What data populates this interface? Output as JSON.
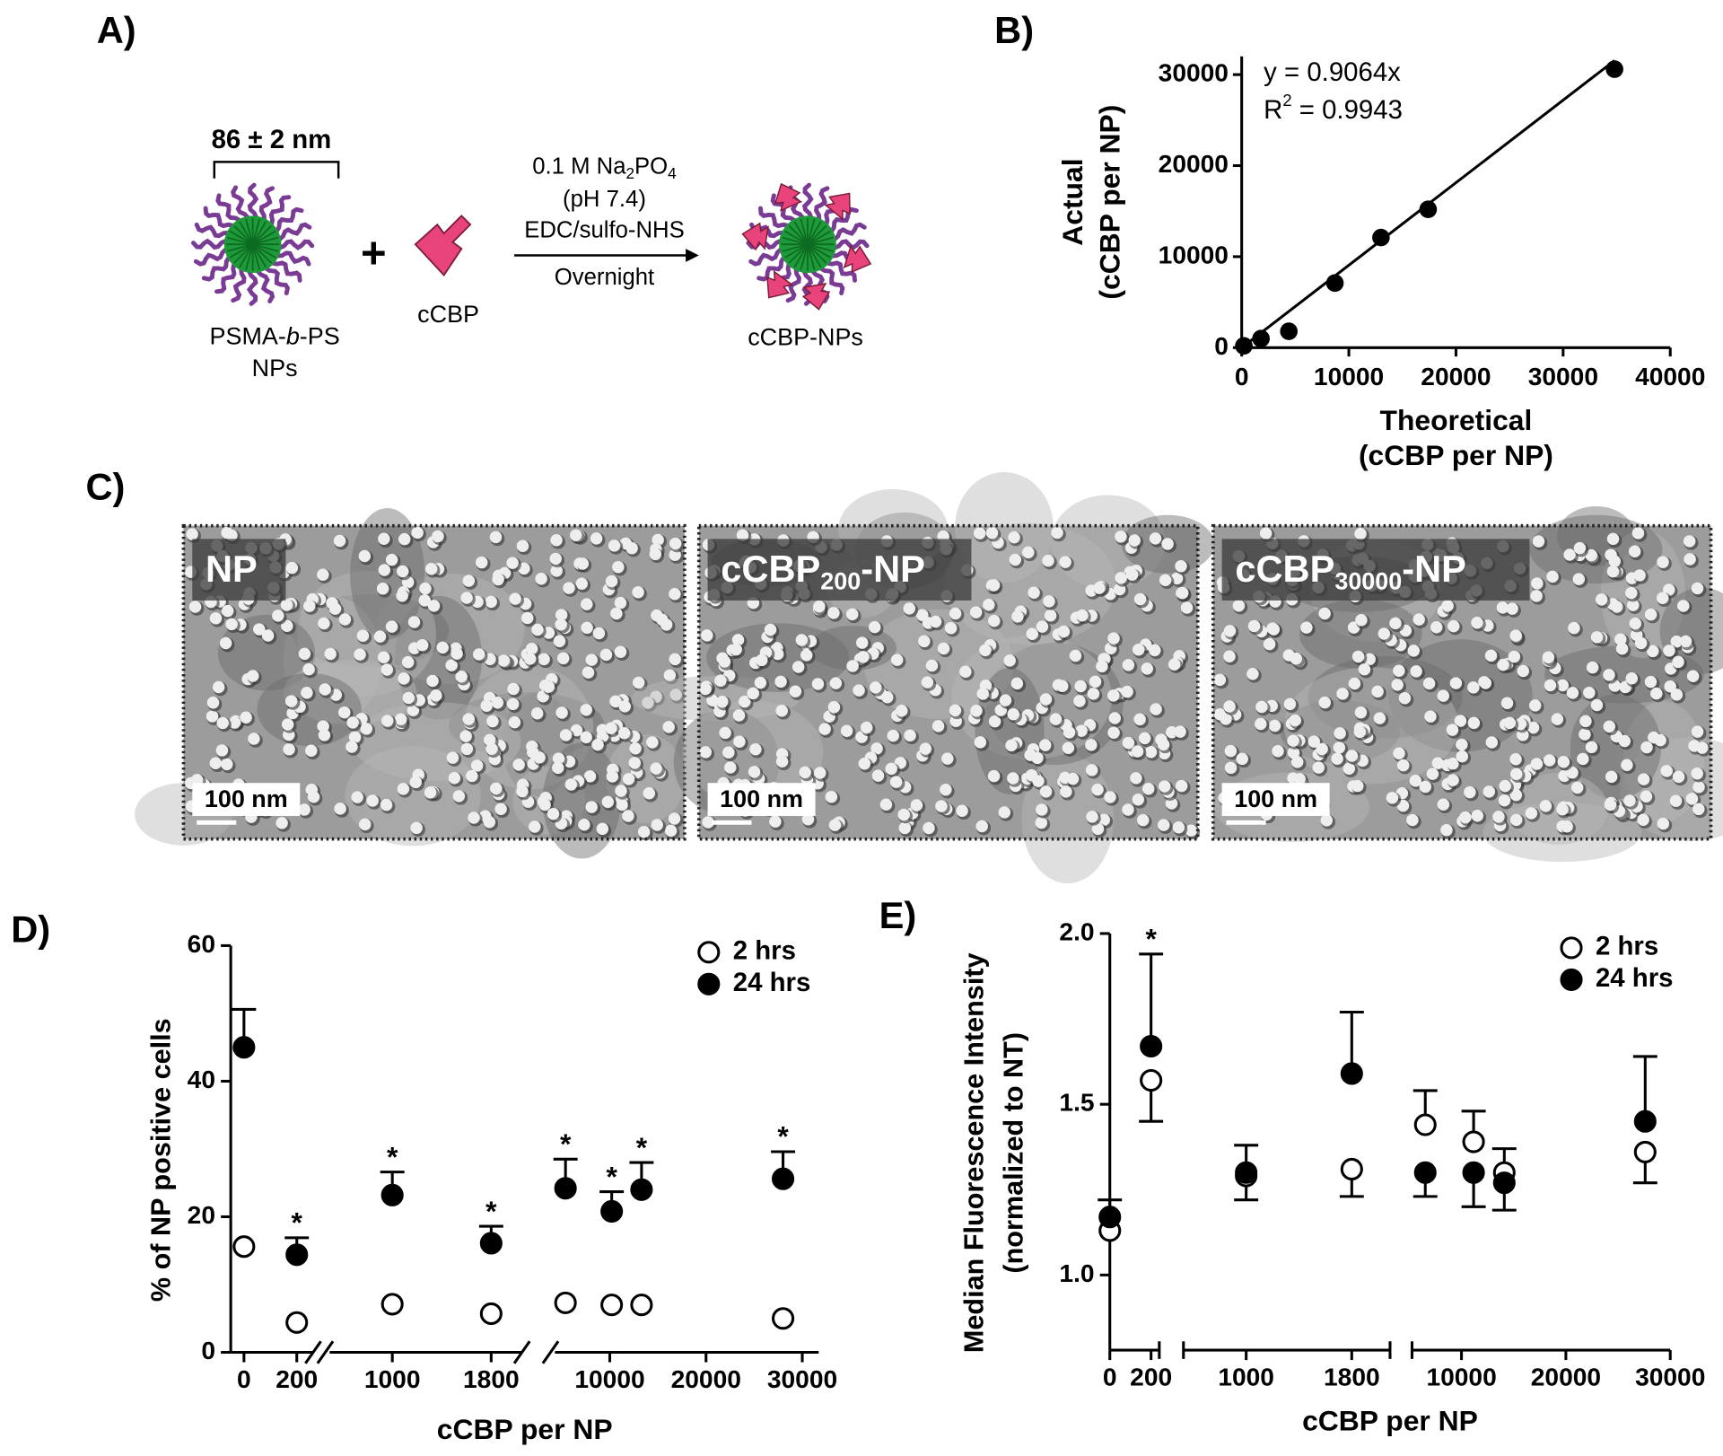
{
  "panel_labels": [
    "A)",
    "B)",
    "C)",
    "D)",
    "E)"
  ],
  "scheme": {
    "size": "86 ± 2 nm",
    "np_name": [
      "PSMA-",
      "b",
      "-PS"
    ],
    "np_name_2": "NPs",
    "plus": "+",
    "ligand": "cCBP",
    "conditions": [
      [
        "0.1 M Na",
        "2",
        "PO",
        "4"
      ],
      "(pH 7.4)",
      "EDC/sulfo-NHS"
    ],
    "time": "Overnight",
    "product": "cCBP-NPs"
  },
  "micrographs": [
    {
      "label": [
        "NP"
      ],
      "scale_bar": "100 nm"
    },
    {
      "label": [
        "cCBP",
        "200",
        "-NP"
      ],
      "scale_bar": "100 nm"
    },
    {
      "label": [
        "cCBP",
        "30000",
        "-NP"
      ],
      "scale_bar": "100 nm"
    }
  ],
  "chart_data": [
    {
      "type": "scatter",
      "x_label": [
        "Theoretical",
        "(cCBP per NP)"
      ],
      "y_label": [
        "Actual",
        "(cCBP per NP)"
      ],
      "x": [
        200,
        1800,
        4400,
        8700,
        13000,
        17400,
        34800
      ],
      "values": [
        200,
        1000,
        1800,
        7100,
        12100,
        15200,
        30600
      ],
      "fit": {
        "slope": 0.9064,
        "equation": "y = 0.9064x",
        "r2": [
          "R",
          "2",
          " = 0.9943"
        ]
      },
      "xlim": [
        0,
        40000
      ],
      "ylim": [
        0,
        32000
      ],
      "xticks": [
        0,
        10000,
        20000,
        30000,
        40000
      ],
      "yticks": [
        0,
        10000,
        20000,
        30000
      ],
      "color": "#000000"
    },
    {
      "type": "broken-scatter",
      "x_label": "cCBP per NP",
      "y_label": [
        "% of NP positive cells"
      ],
      "x": [
        0,
        200,
        1000,
        1800,
        5400,
        10200,
        13300,
        28000
      ],
      "series": [
        {
          "name": "2 hrs",
          "fill": "open",
          "values": [
            15.6,
            4.4,
            7.1,
            5.7,
            7.3,
            7.0,
            7.0,
            5.0
          ]
        },
        {
          "name": "24 hrs",
          "fill": "filled",
          "values": [
            45.0,
            14.4,
            23.2,
            16.1,
            24.2,
            20.8,
            24.0,
            25.6
          ],
          "errors": [
            5.6,
            2.5,
            3.4,
            2.5,
            4.3,
            2.9,
            4.0,
            4.0
          ]
        }
      ],
      "significance": [
        null,
        "*",
        "*",
        "*",
        "*",
        "*",
        "*",
        "*"
      ],
      "x_segments": [
        {
          "xlim": [
            -50,
            262
          ],
          "xticks": [
            0,
            200
          ]
        },
        {
          "xlim": [
            493,
            2049
          ],
          "xticks": [
            1000,
            1800
          ]
        },
        {
          "xlim": [
            4300,
            31700
          ],
          "xticks": [
            10000,
            20000,
            30000
          ]
        }
      ],
      "axis_break": "slash",
      "ylim": [
        0,
        60
      ],
      "yticks": [
        0,
        20,
        40,
        60
      ],
      "legend": "upper right",
      "color": "#000000"
    },
    {
      "type": "broken-scatter",
      "x_label": "cCBP per NP",
      "y_label": [
        "Median Fluorescence Intensity",
        "(normalized to NT)"
      ],
      "x": [
        0,
        200,
        1000,
        1800,
        6530,
        11160,
        14100,
        27600
      ],
      "series": [
        {
          "name": "2 hrs",
          "fill": "open",
          "values": [
            1.13,
            1.57,
            1.29,
            1.31,
            1.44,
            1.39,
            1.3,
            1.36
          ],
          "errors": [
            null,
            0.12,
            0.07,
            0.08,
            0.1,
            0.09,
            0.07,
            0.09
          ]
        },
        {
          "name": "24 hrs",
          "fill": "filled",
          "values": [
            1.17,
            1.67,
            1.3,
            1.59,
            1.3,
            1.3,
            1.27,
            1.45
          ],
          "errors": [
            0.05,
            0.27,
            0.08,
            0.18,
            0.07,
            0.1,
            0.08,
            0.19
          ]
        }
      ],
      "significance": [
        null,
        "*",
        null,
        null,
        null,
        null,
        null,
        null
      ],
      "x_segments": [
        {
          "xlim": [
            0,
            240
          ],
          "xticks": [
            0,
            200
          ]
        },
        {
          "xlim": [
            525,
            2090
          ],
          "xticks": [
            1000,
            1800
          ]
        },
        {
          "xlim": [
            5260,
            30000
          ],
          "xticks": [
            10000,
            20000,
            30000
          ]
        }
      ],
      "axis_break": "gap",
      "ylim": [
        0.78,
        2.0
      ],
      "yticks": [
        {
          "value": 1.0,
          "label": "1.0"
        },
        {
          "value": 1.5,
          "label": "1.5"
        },
        {
          "value": 2.0,
          "label": "2.0"
        }
      ],
      "legend": "upper right",
      "color": "#000000"
    }
  ]
}
